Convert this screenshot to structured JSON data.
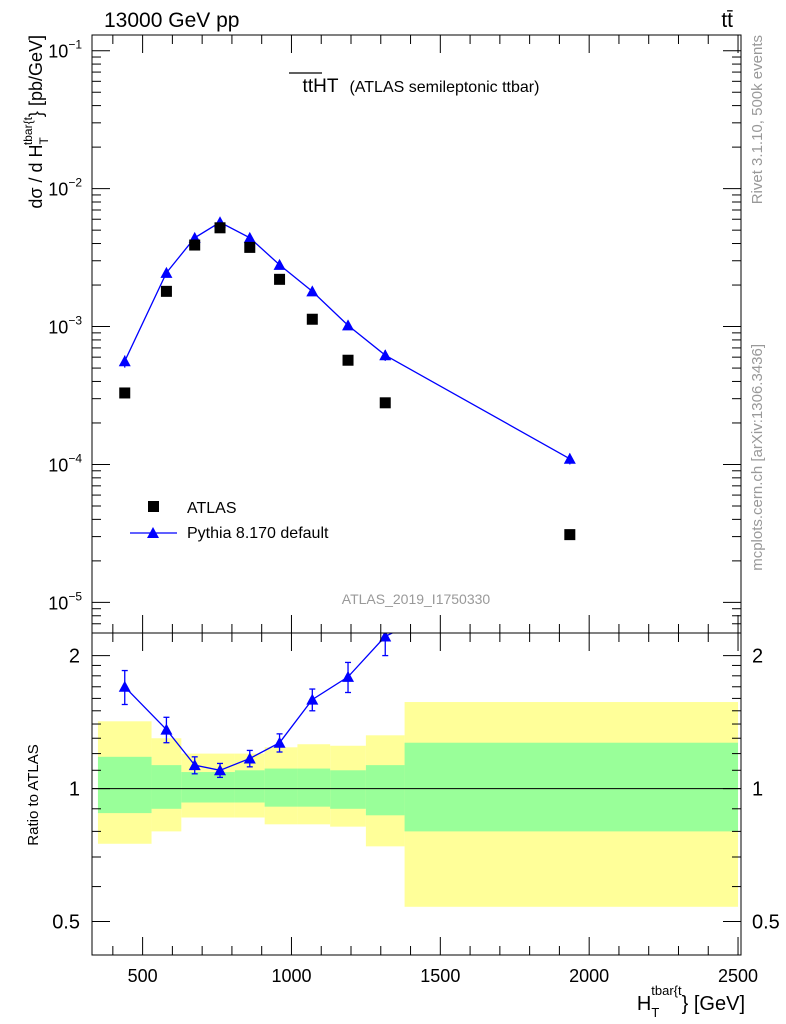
{
  "header": {
    "left": "13000 GeV pp",
    "right": "tt̄"
  },
  "side_labels": {
    "rivet": "Rivet 3.1.10,  500k events",
    "mcplots": "mcplots.cern.ch [arXiv:1306.3436]"
  },
  "chart_data": [
    {
      "type": "scatter",
      "title_main": "ttHT",
      "title_note": "(ATLAS semileptonic ttbar)",
      "analysis_id": "ATLAS_2019_I1750330",
      "ylabel_main": "dσ / d H",
      "ylabel_sup": "tbar{t",
      "ylabel_sub": "T",
      "ylabel_tail": "} [pb/GeV]",
      "yscale": "log",
      "ylim": [
        6e-06,
        0.13
      ],
      "xlim": [
        330,
        2510
      ],
      "y_ticks": [
        {
          "value": 1e-05,
          "base": "10",
          "exp": "−5"
        },
        {
          "value": 0.0001,
          "base": "10",
          "exp": "−4"
        },
        {
          "value": 0.001,
          "base": "10",
          "exp": "−3"
        },
        {
          "value": 0.01,
          "base": "10",
          "exp": "−2"
        },
        {
          "value": 0.1,
          "base": "10",
          "exp": "−1"
        }
      ],
      "series": [
        {
          "name": "ATLAS",
          "marker": "square",
          "color": "#000000",
          "x": [
            440,
            580,
            675,
            760,
            860,
            960,
            1070,
            1190,
            1315,
            1935
          ],
          "y": [
            0.00033,
            0.0018,
            0.0039,
            0.0052,
            0.00375,
            0.0022,
            0.00113,
            0.00057,
            0.00028,
            3.1e-05
          ]
        },
        {
          "name": "Pythia 8.170 default",
          "marker": "triangle",
          "color": "#0000ff",
          "x": [
            440,
            580,
            675,
            760,
            860,
            960,
            1070,
            1190,
            1315,
            1935
          ],
          "y": [
            0.00056,
            0.00245,
            0.0044,
            0.0057,
            0.0044,
            0.0028,
            0.0018,
            0.00102,
            0.00062,
            0.00011
          ],
          "yerr_rel": [
            0.1,
            0.06,
            0.05,
            0.04,
            0.04,
            0.04,
            0.05,
            0.07,
            0.09,
            0.09
          ]
        }
      ],
      "legend": {
        "placement": "lower-left",
        "entries": [
          "ATLAS",
          "Pythia 8.170 default"
        ]
      }
    },
    {
      "type": "line",
      "ylabel": "Ratio to ATLAS",
      "xlabel_main": "H",
      "xlabel_sup": "tbar{t",
      "xlabel_sub": "T",
      "xlabel_tail": "} [GeV]",
      "xlim": [
        330,
        2510
      ],
      "yscale": "log",
      "ylim": [
        0.42,
        2.25
      ],
      "x_ticks": [
        "500",
        "1000",
        "1500",
        "2000",
        "2500"
      ],
      "x_tick_values": [
        500,
        1000,
        1500,
        2000,
        2500
      ],
      "y_ticks": [
        "0.5",
        "1",
        "2"
      ],
      "y_tick_values": [
        0.5,
        1,
        2
      ],
      "reference_line": 1,
      "bands": [
        {
          "x0": 350,
          "x1": 530,
          "yellow": [
            0.75,
            1.42
          ],
          "green": [
            0.88,
            1.18
          ]
        },
        {
          "x0": 530,
          "x1": 630,
          "yellow": [
            0.8,
            1.3
          ],
          "green": [
            0.9,
            1.13
          ]
        },
        {
          "x0": 630,
          "x1": 810,
          "yellow": [
            0.86,
            1.2
          ],
          "green": [
            0.93,
            1.09
          ]
        },
        {
          "x0": 810,
          "x1": 910,
          "yellow": [
            0.86,
            1.2
          ],
          "green": [
            0.93,
            1.1
          ]
        },
        {
          "x0": 910,
          "x1": 1020,
          "yellow": [
            0.83,
            1.24
          ],
          "green": [
            0.91,
            1.11
          ]
        },
        {
          "x0": 1020,
          "x1": 1130,
          "yellow": [
            0.83,
            1.26
          ],
          "green": [
            0.91,
            1.11
          ]
        },
        {
          "x0": 1130,
          "x1": 1250,
          "yellow": [
            0.82,
            1.25
          ],
          "green": [
            0.9,
            1.1
          ]
        },
        {
          "x0": 1250,
          "x1": 1380,
          "yellow": [
            0.74,
            1.32
          ],
          "green": [
            0.87,
            1.13
          ]
        },
        {
          "x0": 1380,
          "x1": 2500,
          "yellow": [
            0.54,
            1.57
          ],
          "green": [
            0.8,
            1.27
          ]
        }
      ],
      "series": [
        {
          "name": "Pythia 8.170 default",
          "color": "#0000ff",
          "x": [
            440,
            580,
            675,
            760,
            860,
            960,
            1070,
            1190,
            1315
          ],
          "y": [
            1.7,
            1.36,
            1.13,
            1.1,
            1.17,
            1.27,
            1.59,
            1.79,
            2.21
          ],
          "yerr": [
            0.15,
            0.09,
            0.05,
            0.04,
            0.05,
            0.06,
            0.09,
            0.14,
            0.21
          ],
          "continues_to": {
            "x": 1935,
            "y": 3.5
          }
        }
      ]
    }
  ]
}
